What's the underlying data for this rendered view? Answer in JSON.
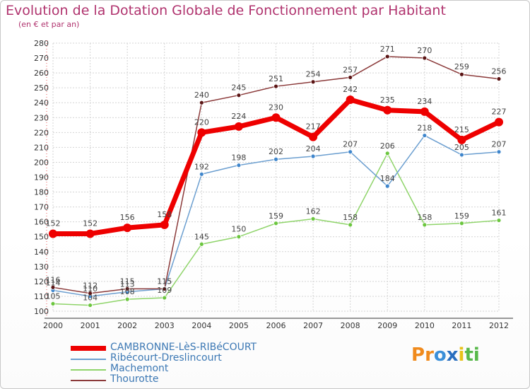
{
  "header": {
    "title": "Evolution de la Dotation Globale de Fonctionnement par Habitant",
    "subtitle": "(en € et par an)"
  },
  "logo": {
    "text": "Proxiti",
    "letters": [
      "P",
      "r",
      "o",
      "x",
      "i",
      "t",
      "i"
    ],
    "colors": [
      "#f08a1c",
      "#f08a1c",
      "#3b8fd8",
      "#2a6fbf",
      "#e8c21a",
      "#58b84a",
      "#58b84a"
    ]
  },
  "chart_data": {
    "type": "line",
    "title": "Evolution de la Dotation Globale de Fonctionnement par Habitant",
    "subtitle": "(en € et par an)",
    "xlabel": "",
    "ylabel": "",
    "x": [
      "2000",
      "2001",
      "2002",
      "2003",
      "2004",
      "2005",
      "2006",
      "2007",
      "2008",
      "2009",
      "2010",
      "2011",
      "2012"
    ],
    "ylim": [
      100,
      280
    ],
    "yticks": [
      100,
      110,
      120,
      130,
      140,
      150,
      160,
      170,
      180,
      190,
      200,
      210,
      220,
      230,
      240,
      250,
      260,
      270,
      280
    ],
    "grid": true,
    "legend_position": "bottom-left",
    "series": [
      {
        "name": "Machemont",
        "color": "#8fd46a",
        "marker": "#6cc63f",
        "width": 1.5,
        "marker_r": 3,
        "values": [
          105,
          104,
          108,
          109,
          145,
          150,
          159,
          162,
          158,
          206,
          158,
          159,
          161
        ]
      },
      {
        "name": "Ribécourt-Dreslincourt",
        "color": "#6c9fd0",
        "marker": "#3f86cc",
        "width": 1.5,
        "marker_r": 3,
        "values": [
          114,
          110,
          113,
          115,
          192,
          198,
          202,
          204,
          207,
          184,
          218,
          205,
          207
        ]
      },
      {
        "name": "Thourotte",
        "color": "#8b3a3a",
        "marker": "#5a1414",
        "width": 1.5,
        "marker_r": 3,
        "values": [
          116,
          112,
          115,
          115,
          240,
          245,
          251,
          254,
          257,
          271,
          270,
          259,
          256
        ]
      },
      {
        "name": "CAMBRONNE-LèS-RIBéCOURT",
        "color": "#ee0000",
        "marker": "#ee0000",
        "width": 7,
        "marker_r": 6,
        "values": [
          152,
          152,
          156,
          158,
          220,
          224,
          230,
          217,
          242,
          235,
          234,
          215,
          227
        ]
      }
    ],
    "legend": [
      {
        "name": "CAMBRONNE-LèS-RIBéCOURT",
        "color": "#ee0000",
        "thickness": 7
      },
      {
        "name": "Ribécourt-Dreslincourt",
        "color": "#6c9fd0",
        "thickness": 2
      },
      {
        "name": "Machemont",
        "color": "#8fd46a",
        "thickness": 2
      },
      {
        "name": "Thourotte",
        "color": "#8b3a3a",
        "thickness": 2
      }
    ]
  }
}
